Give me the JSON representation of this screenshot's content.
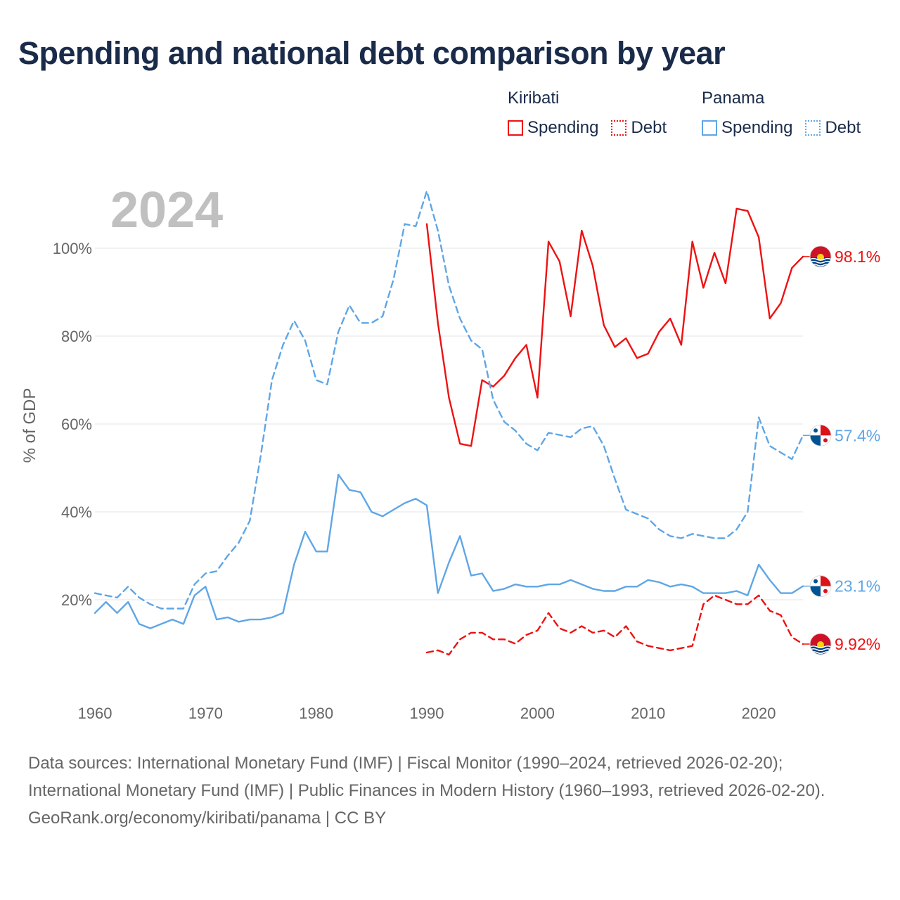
{
  "chart_data": {
    "type": "line",
    "title": "Spending and national debt comparison by year",
    "ylabel": "% of GDP",
    "xlabel": "",
    "current_year_label": "2024",
    "xlim": [
      1960,
      2024
    ],
    "ylim": [
      0,
      115
    ],
    "x_ticks": [
      1960,
      1970,
      1980,
      1990,
      2000,
      2010,
      2020
    ],
    "y_ticks": [
      {
        "value": 20,
        "label": "20%"
      },
      {
        "value": 40,
        "label": "40%"
      },
      {
        "value": 60,
        "label": "60%"
      },
      {
        "value": 80,
        "label": "80%"
      },
      {
        "value": 100,
        "label": "100%"
      }
    ],
    "grid": true,
    "legend_position": "top-right",
    "legend_groups": [
      {
        "country": "Kiribati",
        "items": [
          {
            "label": "Spending",
            "style": "solid",
            "color": "#ee1111"
          },
          {
            "label": "Debt",
            "style": "dotted",
            "color": "#ee1111"
          }
        ]
      },
      {
        "country": "Panama",
        "items": [
          {
            "label": "Spending",
            "style": "solid",
            "color": "#5fa6e6"
          },
          {
            "label": "Debt",
            "style": "dotted",
            "color": "#5fa6e6"
          }
        ]
      }
    ],
    "series": [
      {
        "name": "Kiribati Spending",
        "country": "Kiribati",
        "color": "#ee1111",
        "dashed": false,
        "end_label": "98.1%",
        "flag": "kiribati",
        "start_year": 1990,
        "values": [
          105.5,
          83,
          66,
          55.5,
          55,
          70,
          68.5,
          71,
          75,
          78,
          66,
          101.5,
          97,
          84.5,
          104,
          96,
          82.5,
          77.5,
          79.5,
          75,
          76,
          81,
          84,
          78,
          101.5,
          91,
          99,
          92,
          109,
          108.5,
          102.5,
          84,
          87.5,
          95.5,
          98.1
        ]
      },
      {
        "name": "Kiribati Debt",
        "country": "Kiribati",
        "color": "#ee1111",
        "dashed": true,
        "end_label": "9.92%",
        "flag": "kiribati",
        "start_year": 1990,
        "values": [
          8,
          8.5,
          7.5,
          11,
          12.5,
          12.5,
          11,
          11,
          10,
          12,
          13,
          17,
          13.5,
          12.5,
          14,
          12.5,
          13,
          11.5,
          14,
          10.5,
          9.5,
          9,
          8.5,
          9,
          9.5,
          19,
          21,
          20,
          19,
          19,
          21,
          17.5,
          16.5,
          11.5,
          9.92
        ]
      },
      {
        "name": "Panama Spending",
        "country": "Panama",
        "color": "#5fa6e6",
        "dashed": false,
        "end_label": "23.1%",
        "flag": "panama",
        "start_year": 1960,
        "values": [
          17,
          19.5,
          17,
          19.5,
          14.5,
          13.5,
          14.5,
          15.5,
          14.5,
          21,
          23,
          15.5,
          16,
          15,
          15.5,
          15.5,
          16,
          17,
          28,
          35.5,
          31,
          31,
          48.5,
          45,
          44.5,
          40,
          39,
          40.5,
          42,
          43,
          41.5,
          21.5,
          28.5,
          34.5,
          25.5,
          26,
          22,
          22.5,
          23.5,
          23,
          23,
          23.5,
          23.5,
          24.5,
          23.5,
          22.5,
          22,
          22,
          23,
          23,
          24.5,
          24,
          23,
          23.5,
          23,
          21.5,
          21.5,
          21.5,
          22,
          21,
          28,
          24.5,
          21.5,
          21.5,
          23.1
        ]
      },
      {
        "name": "Panama Debt",
        "country": "Panama",
        "color": "#5fa6e6",
        "dashed": true,
        "end_label": "57.4%",
        "flag": "panama",
        "start_year": 1960,
        "values": [
          21.5,
          21,
          20.5,
          23,
          20.5,
          19,
          18,
          18,
          18,
          23.5,
          26,
          26.5,
          30,
          33,
          38,
          53,
          70,
          78,
          83.5,
          79,
          70,
          69,
          81,
          87,
          83,
          83,
          84.5,
          93,
          105.5,
          105,
          113,
          104,
          91.5,
          84,
          79,
          77,
          65.5,
          60.5,
          58.5,
          55.5,
          54,
          58,
          57.5,
          57,
          59,
          59.5,
          55,
          47.5,
          40.5,
          39.5,
          38.5,
          36,
          34.5,
          34,
          35,
          34.5,
          34,
          34,
          36,
          40,
          61.5,
          55,
          53.5,
          52,
          57.4
        ]
      }
    ]
  },
  "sources": {
    "line1": "Data sources: International Monetary Fund (IMF) | Fiscal Monitor (1990–2024, retrieved 2026-02-20); International Monetary Fund (IMF) | Public Finances in Modern History (1960–1993, retrieved 2026-02-20).",
    "line2": "GeoRank.org/economy/kiribati/panama | CC BY"
  }
}
